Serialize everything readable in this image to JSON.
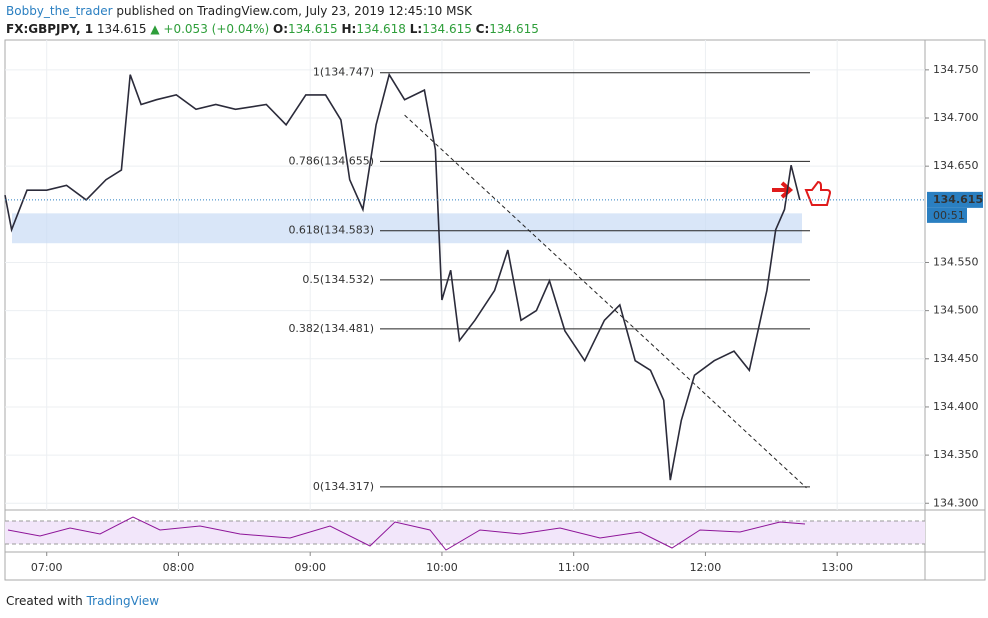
{
  "header": {
    "author": "Bobby_the_trader",
    "published": "published on TradingView.com, July 23, 2019 12:45:10 MSK",
    "symbol": "FX:GBPJPY, 1",
    "price": "134.615",
    "change": "▲ +0.053 (+0.04%)",
    "o_label": "O:",
    "open": "134.615",
    "h_label": "H:",
    "high": "134.618",
    "l_label": "L:",
    "low": "134.615",
    "c_label": "C:",
    "close": "134.615"
  },
  "footer": {
    "created": "Created with",
    "brand": "TradingView"
  },
  "chart_data": {
    "type": "line",
    "color": "#2b2b3a",
    "grid": true,
    "x": [
      401,
      404,
      411,
      420,
      429,
      438,
      447,
      454,
      458,
      463,
      470,
      479,
      488,
      497,
      506,
      520,
      529,
      538,
      547,
      554,
      558,
      564,
      570,
      576,
      583,
      592,
      597,
      600,
      604,
      608,
      615,
      624,
      630,
      636,
      643,
      649,
      656,
      665,
      674,
      681,
      688,
      695,
      701,
      704,
      709,
      715,
      724,
      733,
      740,
      745,
      748,
      752,
      756,
      759,
      763
    ],
    "values": [
      134.62,
      134.584,
      134.625,
      134.625,
      134.63,
      134.615,
      134.636,
      134.646,
      134.745,
      134.714,
      134.719,
      134.724,
      134.709,
      134.714,
      134.709,
      134.714,
      134.693,
      134.724,
      134.724,
      134.698,
      134.636,
      134.605,
      134.693,
      134.745,
      134.719,
      134.729,
      134.667,
      134.511,
      134.542,
      134.469,
      134.49,
      134.521,
      134.563,
      134.49,
      134.5,
      134.531,
      134.479,
      134.448,
      134.49,
      134.506,
      134.448,
      134.438,
      134.407,
      134.324,
      134.386,
      134.433,
      134.448,
      134.458,
      134.438,
      134.49,
      134.521,
      134.584,
      134.605,
      134.651,
      134.615
    ],
    "xlim": [
      401,
      820
    ],
    "ylim": [
      134.293,
      134.781
    ],
    "xticks": [
      {
        "value": 420,
        "label": "07:00"
      },
      {
        "value": 480,
        "label": "08:00"
      },
      {
        "value": 540,
        "label": "09:00"
      },
      {
        "value": 600,
        "label": "10:00"
      },
      {
        "value": 660,
        "label": "11:00"
      },
      {
        "value": 720,
        "label": "12:00"
      },
      {
        "value": 780,
        "label": "13:00"
      }
    ],
    "yticks": [
      {
        "value": 134.3,
        "label": "134.300"
      },
      {
        "value": 134.35,
        "label": "134.350"
      },
      {
        "value": 134.4,
        "label": "134.400"
      },
      {
        "value": 134.45,
        "label": "134.450"
      },
      {
        "value": 134.5,
        "label": "134.500"
      },
      {
        "value": 134.55,
        "label": "134.550"
      },
      {
        "value": 134.65,
        "label": "134.650"
      },
      {
        "value": 134.7,
        "label": "134.700"
      },
      {
        "value": 134.75,
        "label": "134.750"
      }
    ],
    "fib": [
      {
        "value": 134.747,
        "label": "1(134.747)"
      },
      {
        "value": 134.655,
        "label": "0.786(134.655)"
      },
      {
        "value": 134.583,
        "label": "0.618(134.583)"
      },
      {
        "value": 134.532,
        "label": "0.5(134.532)"
      },
      {
        "value": 134.481,
        "label": "0.382(134.481)"
      },
      {
        "value": 134.317,
        "label": "0(134.317)"
      }
    ],
    "zone": [
      134.57,
      134.601
    ],
    "trendline": {
      "x": [
        583,
        766
      ],
      "y": [
        134.703,
        134.316
      ]
    },
    "last": 134.615,
    "countdown": "00:51"
  }
}
